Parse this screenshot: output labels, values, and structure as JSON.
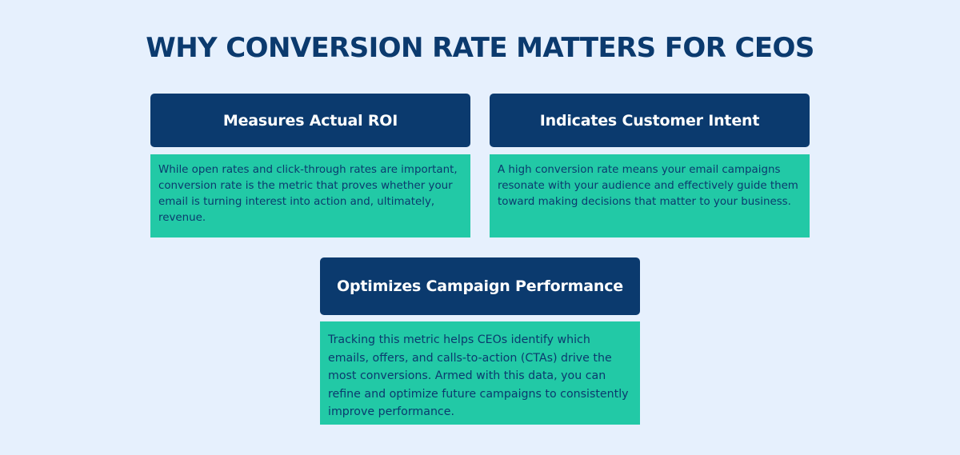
{
  "title": "WHY CONVERSION RATE MATTERS FOR CEOs",
  "cards": [
    {
      "heading": "Measures Actual ROI",
      "body": "While open rates and click-through rates are important, conversion rate is the metric that proves whether your email is turning interest into action and, ultimately, revenue."
    },
    {
      "heading": "Indicates Customer Intent",
      "body": "A high conversion rate means your email campaigns resonate with your audience and effectively guide them toward making decisions that matter to your business."
    },
    {
      "heading": "Optimizes Campaign Performance",
      "body": "Tracking this metric helps CEOs identify which emails, offers, and calls-to-action (CTAs) drive the most conversions. Armed with this data, you can refine and optimize future campaigns to consistently improve performance."
    }
  ],
  "colors": {
    "background": "#e6f0fd",
    "header": "#0b3a6e",
    "body": "#22c9a6",
    "text_dark": "#0b3a6e",
    "text_light": "#ffffff"
  }
}
